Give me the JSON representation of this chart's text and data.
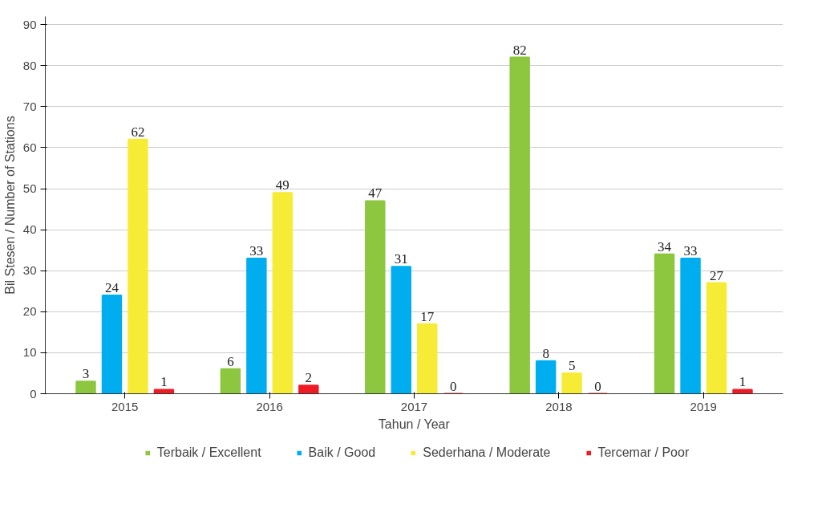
{
  "chart_data": {
    "type": "bar",
    "xlabel": "Tahun / Year",
    "ylabel": "Bil Stesen / Number of Stations",
    "categories": [
      "2015",
      "2016",
      "2017",
      "2018",
      "2019"
    ],
    "series": [
      {
        "name": "Terbaik / Excellent",
        "color": "#8dc63f",
        "values": [
          3,
          6,
          47,
          82,
          34
        ]
      },
      {
        "name": "Baik / Good",
        "color": "#00aeef",
        "values": [
          24,
          33,
          31,
          8,
          33
        ]
      },
      {
        "name": "Sederhana / Moderate",
        "color": "#f7ec35",
        "values": [
          62,
          49,
          17,
          5,
          27
        ]
      },
      {
        "name": "Tercemar / Poor",
        "color": "#ed1c24",
        "values": [
          1,
          2,
          0,
          0,
          1
        ]
      }
    ],
    "ylim": [
      0,
      92
    ],
    "yticks": [
      0,
      10,
      20,
      30,
      40,
      50,
      60,
      70,
      80,
      90
    ],
    "grid": "y",
    "legend": "bottom",
    "data_labels": true
  }
}
